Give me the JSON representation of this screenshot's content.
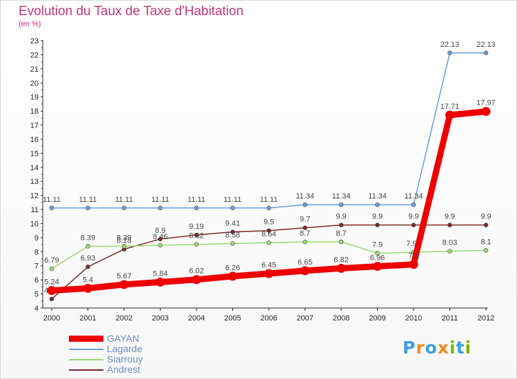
{
  "header": {
    "title": "Evolution du Taux de Taxe d'Habitation",
    "unit": "(en %)"
  },
  "logo": {
    "text": "Proxiti",
    "letters": [
      [
        "P",
        "#3aa0e0"
      ],
      [
        "r",
        "#f08a20"
      ],
      [
        "o",
        "#3aa0e0"
      ],
      [
        "x",
        "#f08a20"
      ],
      [
        "i",
        "#7ab800"
      ],
      [
        "t",
        "#3aa0e0"
      ],
      [
        "i",
        "#7ab800"
      ]
    ]
  },
  "chart_data": {
    "type": "line",
    "title": "Evolution du Taux de Taxe d'Habitation",
    "ylabel": "(en %)",
    "x": [
      "2000",
      "2001",
      "2002",
      "2003",
      "2004",
      "2005",
      "2006",
      "2007",
      "2008",
      "2009",
      "2010",
      "2011",
      "2012"
    ],
    "ylim": [
      4,
      23
    ],
    "yticks": [
      4,
      5,
      6,
      7,
      8,
      9,
      10,
      11,
      12,
      13,
      14,
      15,
      16,
      17,
      18,
      19,
      20,
      21,
      22,
      23
    ],
    "grid": false,
    "legend_position": "bottom-left",
    "series": [
      {
        "name": "Lagarde",
        "color": "#6a9ed8",
        "values": [
          11.11,
          11.11,
          11.11,
          11.11,
          11.11,
          11.11,
          11.11,
          11.34,
          11.34,
          11.34,
          11.34,
          22.13,
          22.13
        ],
        "labels": [
          "11.11",
          "11.11",
          "11.11",
          "11.11",
          "11.11",
          "11.11",
          "11.11",
          "11.34",
          "11.34",
          "11.34",
          "11.34",
          "22.13",
          "22.13"
        ]
      },
      {
        "name": "Andrest",
        "color": "#7a2a2a",
        "values": [
          4.64,
          6.93,
          8.18,
          8.9,
          9.19,
          9.41,
          9.5,
          9.7,
          9.9,
          9.9,
          9.9,
          9.9,
          9.9
        ],
        "labels": [
          "4.64",
          "6.93",
          "8.18",
          "8.9",
          "9.19",
          "9.41",
          "9.5",
          "9.7",
          "9.9",
          "9.9",
          "9.9",
          "9.9",
          "9.9"
        ]
      },
      {
        "name": "Siarrouy",
        "color": "#99d870",
        "values": [
          6.79,
          8.39,
          8.39,
          8.46,
          8.52,
          8.58,
          8.64,
          8.7,
          8.7,
          7.9,
          7.96,
          8.03,
          8.1
        ],
        "labels": [
          "6.79",
          "8.39",
          "8.39",
          "8.46",
          "8.52",
          "8.58",
          "8.64",
          "8.7",
          "8.7",
          "7.9",
          "7.96",
          "8.03",
          "8.1"
        ]
      },
      {
        "name": "GAYAN",
        "color": "#ee0000",
        "values": [
          5.24,
          5.4,
          5.67,
          5.84,
          6.02,
          6.26,
          6.45,
          6.65,
          6.82,
          6.96,
          7.1,
          17.71,
          17.97
        ],
        "labels": [
          "5.24",
          "5.4",
          "5.67",
          "5.84",
          "6.02",
          "6.26",
          "6.45",
          "6.65",
          "6.82",
          "6.96",
          "7.1",
          "17.71",
          "17.97"
        ]
      }
    ],
    "legend": [
      "GAYAN",
      "Lagarde",
      "Siarrouy",
      "Andrest"
    ]
  }
}
